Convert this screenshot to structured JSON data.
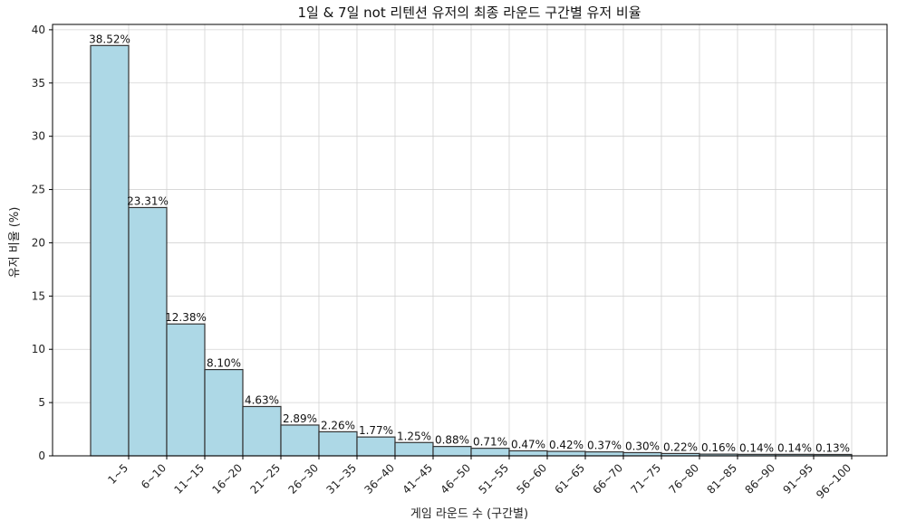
{
  "chart_data": {
    "type": "bar",
    "title": "1일 & 7일 not 리텐션 유저의 최종 라운드 구간별 유저 비율",
    "xlabel": "게임 라운드 수 (구간별)",
    "ylabel": "유저 비율 (%)",
    "ylim": [
      0,
      40.5
    ],
    "yticks": [
      0,
      5,
      10,
      15,
      20,
      25,
      30,
      35,
      40
    ],
    "grid": true,
    "categories": [
      "1~5",
      "6~10",
      "11~15",
      "16~20",
      "21~25",
      "26~30",
      "31~35",
      "36~40",
      "41~45",
      "46~50",
      "51~55",
      "56~60",
      "61~65",
      "66~70",
      "71~75",
      "76~80",
      "81~85",
      "86~90",
      "91~95",
      "96~100"
    ],
    "values": [
      38.52,
      23.31,
      12.38,
      8.1,
      4.63,
      2.89,
      2.26,
      1.77,
      1.25,
      0.88,
      0.71,
      0.47,
      0.42,
      0.37,
      0.3,
      0.22,
      0.16,
      0.14,
      0.14,
      0.13
    ],
    "data_labels": [
      "38.52%",
      "23.31%",
      "12.38%",
      "8.10%",
      "4.63%",
      "2.89%",
      "2.26%",
      "1.77%",
      "1.25%",
      "0.88%",
      "0.71%",
      "0.47%",
      "0.42%",
      "0.37%",
      "0.30%",
      "0.22%",
      "0.16%",
      "0.14%",
      "0.14%",
      "0.13%"
    ],
    "colors": {
      "bar_fill": "#add8e6",
      "bar_edge": "#333333",
      "grid": "#d3d3d3"
    }
  }
}
